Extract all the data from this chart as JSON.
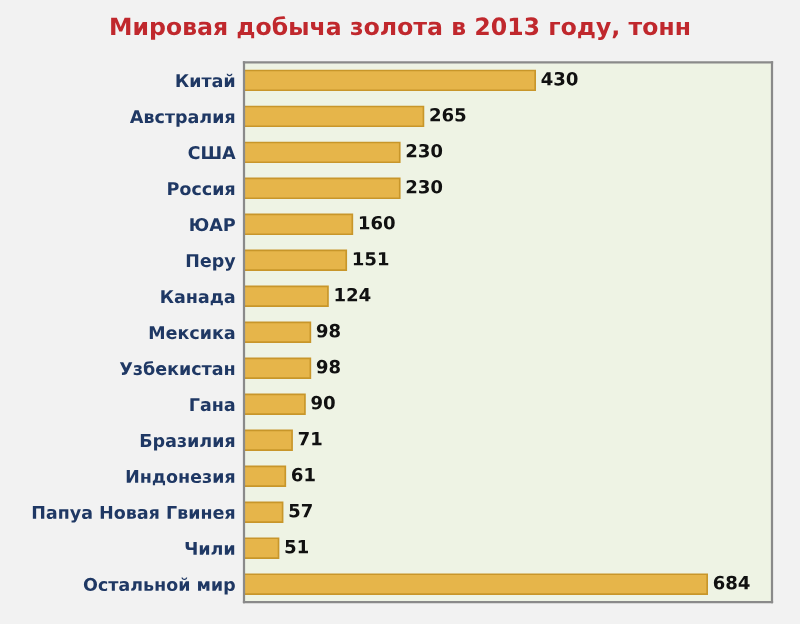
{
  "chart_data": {
    "type": "bar",
    "orientation": "horizontal",
    "title": "Мировая добыча золота в 2013 году, тонн",
    "categories": [
      "Китай",
      "Австралия",
      "США",
      "Россия",
      "ЮАР",
      "Перу",
      "Канада",
      "Мексика",
      "Узбекистан",
      "Гана",
      "Бразилия",
      "Индонезия",
      "Папуа Новая Гвинея",
      "Чили",
      "Остальной мир"
    ],
    "values": [
      430,
      265,
      230,
      230,
      160,
      151,
      124,
      98,
      98,
      90,
      71,
      61,
      57,
      51,
      684
    ],
    "color": "#e6b54a",
    "data_labels": true,
    "tick_labels": "y",
    "grid": false,
    "legend": false
  }
}
